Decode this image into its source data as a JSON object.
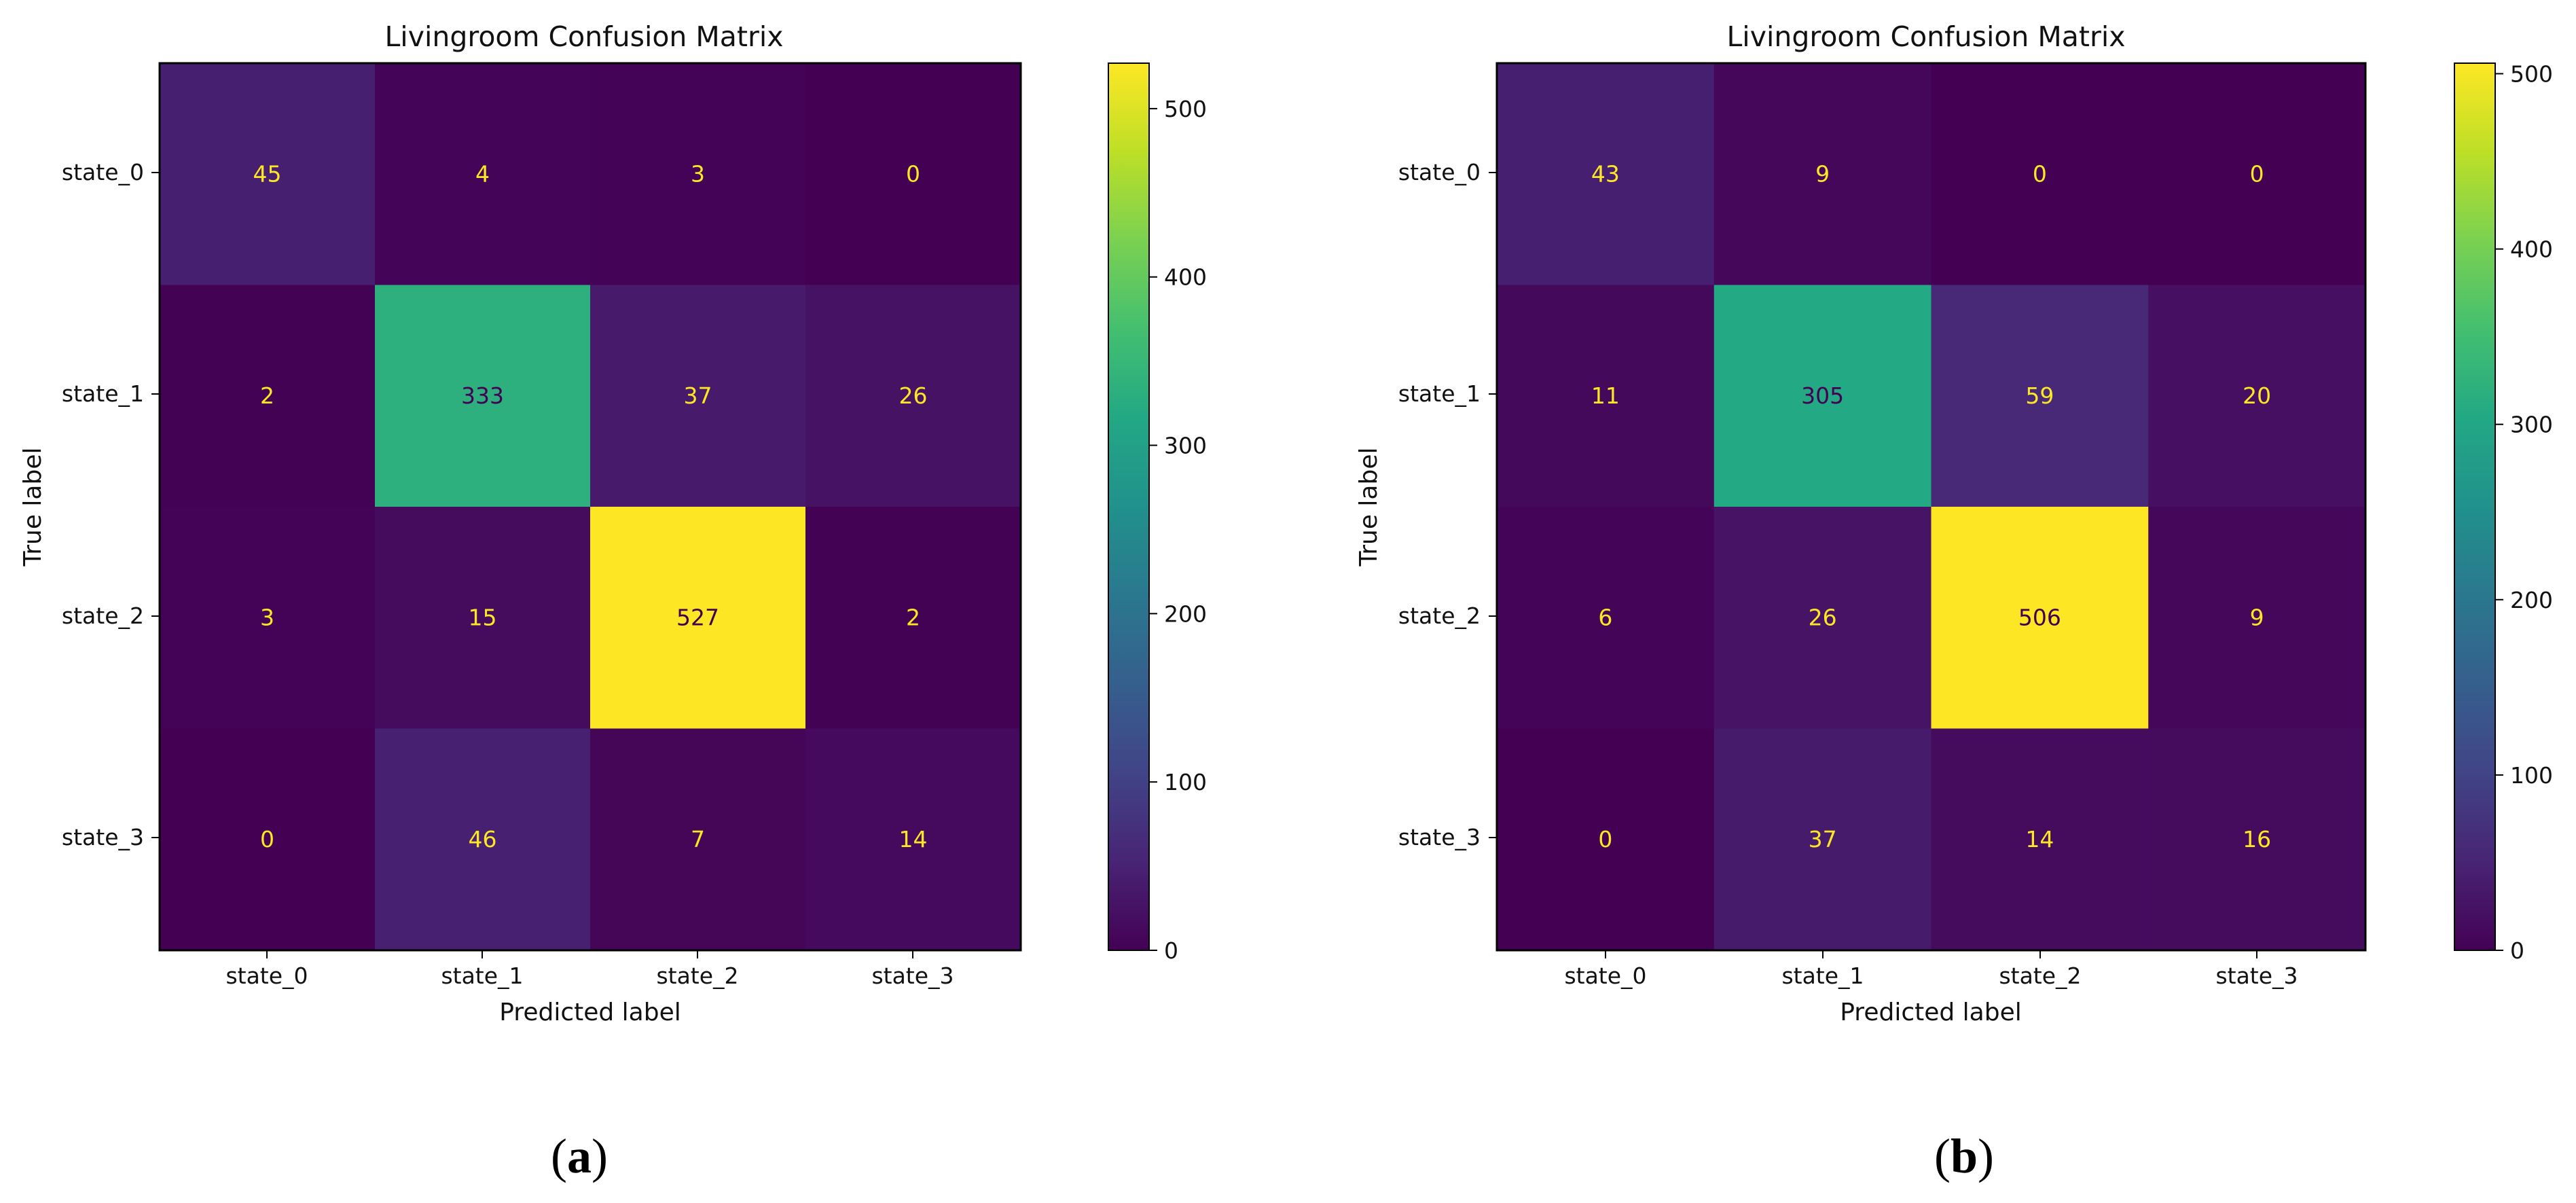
{
  "chart_data": [
    {
      "type": "heatmap",
      "panel": "(a)",
      "panel_letter": "a",
      "title": "Livingroom Confusion Matrix",
      "xlabel": "Predicted label",
      "ylabel": "True label",
      "x_categories": [
        "state_0",
        "state_1",
        "state_2",
        "state_3"
      ],
      "y_categories": [
        "state_0",
        "state_1",
        "state_2",
        "state_3"
      ],
      "values": [
        [
          45,
          4,
          3,
          0
        ],
        [
          2,
          333,
          37,
          26
        ],
        [
          3,
          15,
          527,
          2
        ],
        [
          0,
          46,
          7,
          14
        ]
      ],
      "colormap": "viridis",
      "vmin": 0,
      "vmax": 527,
      "colorbar_ticks": [
        0,
        100,
        200,
        300,
        400,
        500
      ],
      "text_color_light": "#fde725",
      "text_color_dark": "#440154"
    },
    {
      "type": "heatmap",
      "panel": "(b)",
      "panel_letter": "b",
      "title": "Livingroom Confusion Matrix",
      "xlabel": "Predicted label",
      "ylabel": "True label",
      "x_categories": [
        "state_0",
        "state_1",
        "state_2",
        "state_3"
      ],
      "y_categories": [
        "state_0",
        "state_1",
        "state_2",
        "state_3"
      ],
      "values": [
        [
          43,
          9,
          0,
          0
        ],
        [
          11,
          305,
          59,
          20
        ],
        [
          6,
          26,
          506,
          9
        ],
        [
          0,
          37,
          14,
          16
        ]
      ],
      "colormap": "viridis",
      "vmin": 0,
      "vmax": 506,
      "colorbar_ticks": [
        0,
        100,
        200,
        300,
        400,
        500
      ],
      "text_color_light": "#fde725",
      "text_color_dark": "#440154"
    }
  ]
}
